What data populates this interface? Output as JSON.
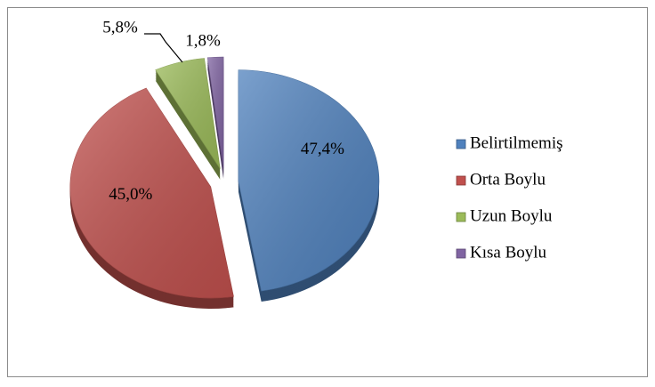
{
  "chart_data": {
    "type": "pie",
    "categories": [
      "Belirtilmemiş",
      "Orta Boylu",
      "Uzun Boylu",
      "Kısa Boylu"
    ],
    "values": [
      47.4,
      45.0,
      5.8,
      1.8
    ],
    "value_labels": [
      "47,4%",
      "45,0%",
      "5,8%",
      "1,8%"
    ],
    "colors": [
      "#4f81bd",
      "#c0504d",
      "#9bbb59",
      "#8064a2"
    ],
    "legend": "right"
  }
}
